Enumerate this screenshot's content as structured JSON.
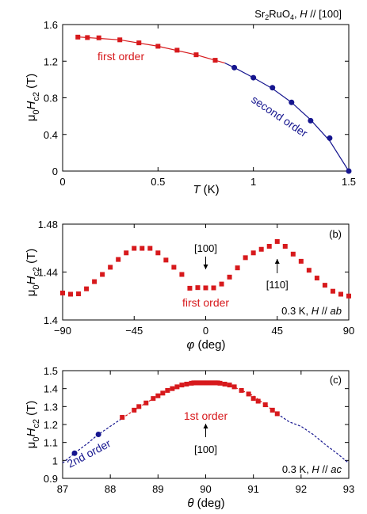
{
  "colors": {
    "first_order": "#d7191c",
    "second_order": "#16168f",
    "axis": "#000000"
  },
  "chart_data": [
    {
      "type": "scatter",
      "panel_title": "Sr2RuO4, H // [100]",
      "xlabel": "T (K)",
      "ylabel": "μ0Hc2 (T)",
      "xlim": [
        0,
        1.5
      ],
      "ylim": [
        0,
        1.6
      ],
      "xticks": [
        0,
        0.5,
        1,
        1.5
      ],
      "xtick_labels": [
        "0",
        "0.5",
        "1",
        "1.5"
      ],
      "yticks": [
        0,
        0.4,
        0.8,
        1.2,
        1.6
      ],
      "ytick_labels": [
        "0",
        "0.4",
        "0.8",
        "1.2",
        "1.6"
      ],
      "annotations": [
        "first order",
        "second order"
      ],
      "series": [
        {
          "name": "first order",
          "marker": "square",
          "x": [
            0.08,
            0.13,
            0.19,
            0.3,
            0.4,
            0.5,
            0.6,
            0.7,
            0.8
          ],
          "y": [
            1.463,
            1.458,
            1.455,
            1.433,
            1.4,
            1.363,
            1.32,
            1.27,
            1.21
          ]
        },
        {
          "name": "second order",
          "marker": "circle",
          "x": [
            0.9,
            1.0,
            1.1,
            1.2,
            1.3,
            1.4,
            1.5
          ],
          "y": [
            1.13,
            1.02,
            0.91,
            0.75,
            0.55,
            0.36,
            0.0
          ]
        }
      ],
      "fit_curves": [
        {
          "style": "solid",
          "color": "first_order",
          "x": [
            0.08,
            0.3,
            0.5,
            0.7,
            0.85
          ],
          "y": [
            1.465,
            1.433,
            1.363,
            1.27,
            1.18
          ]
        },
        {
          "style": "solid",
          "color": "second_order",
          "x": [
            0.85,
            0.9,
            1.0,
            1.1,
            1.2,
            1.3,
            1.4,
            1.5
          ],
          "y": [
            1.18,
            1.13,
            1.02,
            0.9,
            0.75,
            0.56,
            0.33,
            0.0
          ]
        }
      ]
    },
    {
      "type": "scatter",
      "panel_label": "(b)",
      "xlabel": "φ (deg)",
      "ylabel": "μ0Hc2 (T)",
      "xlim": [
        -90,
        90
      ],
      "ylim": [
        1.4,
        1.48
      ],
      "xticks": [
        -90,
        -45,
        0,
        45,
        90
      ],
      "xtick_labels": [
        "−90",
        "−45",
        "0",
        "45",
        "90"
      ],
      "yticks": [
        1.4,
        1.44,
        1.48
      ],
      "ytick_labels": [
        "1.4",
        "1.44",
        "1.48"
      ],
      "annotations": [
        "[100]",
        "[110]",
        "first order",
        "0.3 K, H // ab"
      ],
      "series": [
        {
          "name": "first order",
          "marker": "square",
          "x": [
            -90,
            -85,
            -80,
            -75,
            -70,
            -65,
            -60,
            -55,
            -50,
            -45,
            -40,
            -35,
            -30,
            -25,
            -20,
            -15,
            -10,
            -5,
            0,
            5,
            10,
            15,
            20,
            25,
            30,
            35,
            40,
            45,
            50,
            55,
            60,
            65,
            70,
            75,
            80,
            85,
            90
          ],
          "y": [
            1.4225,
            1.4215,
            1.4218,
            1.426,
            1.432,
            1.438,
            1.444,
            1.4505,
            1.456,
            1.4598,
            1.4598,
            1.4598,
            1.456,
            1.45,
            1.444,
            1.438,
            1.4265,
            1.427,
            1.4268,
            1.4268,
            1.43,
            1.4358,
            1.4435,
            1.452,
            1.456,
            1.459,
            1.4615,
            1.4655,
            1.4615,
            1.455,
            1.449,
            1.4415,
            1.435,
            1.429,
            1.424,
            1.4215,
            1.42
          ]
        }
      ],
      "arrows": [
        {
          "label": "[100]",
          "x": 0,
          "direction": "down"
        },
        {
          "label": "[110]",
          "x": 45,
          "direction": "up"
        }
      ]
    },
    {
      "type": "scatter",
      "panel_label": "(c)",
      "xlabel": "θ (deg)",
      "ylabel": "μ0Hc2 (T)",
      "xlim": [
        87,
        93
      ],
      "ylim": [
        0.9,
        1.5
      ],
      "xticks": [
        87,
        88,
        89,
        90,
        91,
        92,
        93
      ],
      "xtick_labels": [
        "87",
        "88",
        "89",
        "90",
        "91",
        "92",
        "93"
      ],
      "yticks": [
        0.9,
        1.0,
        1.1,
        1.2,
        1.3,
        1.4,
        1.5
      ],
      "ytick_labels": [
        "0.9",
        "1",
        "1.1",
        "1.2",
        "1.3",
        "1.4",
        "1.5"
      ],
      "annotations": [
        "1st order",
        "2nd order",
        "[100]",
        "0.3 K, H // ac"
      ],
      "series": [
        {
          "name": "1st order",
          "marker": "square",
          "x": [
            88.25,
            88.5,
            88.6,
            88.75,
            88.9,
            89.0,
            89.1,
            89.2,
            89.3,
            89.4,
            89.5,
            89.6,
            89.7,
            89.75,
            89.8,
            89.85,
            89.9,
            89.95,
            90.0,
            90.05,
            90.1,
            90.15,
            90.2,
            90.25,
            90.3,
            90.4,
            90.5,
            90.6,
            90.75,
            90.9,
            91.0,
            91.1,
            91.25,
            91.4,
            91.5
          ],
          "y": [
            1.24,
            1.28,
            1.3,
            1.32,
            1.345,
            1.36,
            1.375,
            1.39,
            1.4,
            1.41,
            1.42,
            1.425,
            1.43,
            1.432,
            1.432,
            1.432,
            1.432,
            1.432,
            1.432,
            1.432,
            1.432,
            1.432,
            1.432,
            1.432,
            1.43,
            1.425,
            1.42,
            1.41,
            1.39,
            1.37,
            1.345,
            1.33,
            1.31,
            1.28,
            1.26
          ]
        },
        {
          "name": "2nd order",
          "marker": "circle",
          "x": [
            87.25,
            87.75
          ],
          "y": [
            1.04,
            1.145
          ]
        }
      ],
      "fit_curves": [
        {
          "style": "dashed",
          "color": "second_order",
          "x": [
            87.0,
            87.25,
            87.5,
            87.75,
            88.0,
            88.25
          ],
          "y": [
            0.985,
            1.04,
            1.09,
            1.145,
            1.19,
            1.235
          ]
        },
        {
          "style": "dashed",
          "color": "first_order",
          "x": [
            88.25,
            88.5,
            89.0,
            89.5,
            90.0,
            90.5,
            91.0,
            91.5
          ],
          "y": [
            1.235,
            1.28,
            1.36,
            1.42,
            1.432,
            1.42,
            1.36,
            1.26
          ]
        },
        {
          "style": "dashed",
          "color": "second_order",
          "x": [
            91.5,
            91.75,
            92.0,
            92.25,
            92.5,
            92.75,
            93.0
          ],
          "y": [
            1.26,
            1.215,
            1.19,
            1.145,
            1.09,
            1.04,
            0.985
          ]
        }
      ],
      "arrows": [
        {
          "label": "[100]",
          "x": 90,
          "direction": "up"
        }
      ]
    }
  ]
}
